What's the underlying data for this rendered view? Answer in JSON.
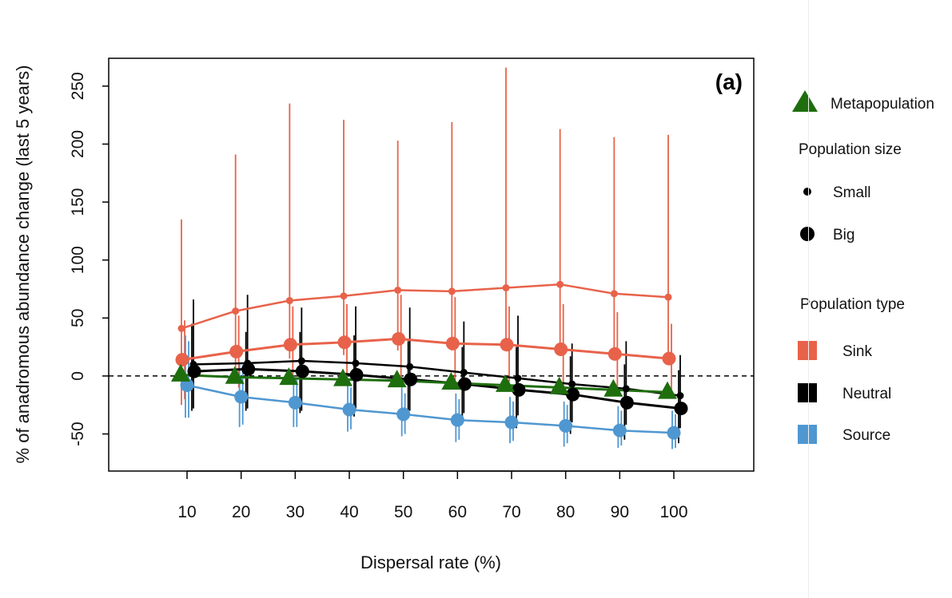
{
  "chart_data": {
    "type": "line",
    "panel_label": "(a)",
    "xlabel": "Dispersal rate (%)",
    "ylabel": "% of anadromous abundance change (last 5 years)",
    "x": [
      10,
      20,
      30,
      40,
      50,
      60,
      70,
      80,
      90,
      100
    ],
    "x_ticks": [
      "10",
      "20",
      "30",
      "40",
      "50",
      "60",
      "70",
      "80",
      "90",
      "100"
    ],
    "y_ticks": [
      "-50",
      "0",
      "50",
      "100",
      "150",
      "200",
      "250"
    ],
    "ylim": [
      -82,
      274
    ],
    "reference_line_y": 0,
    "grid": false,
    "colors": {
      "sink": "#e8624a",
      "neutral": "#000000",
      "source": "#4f97d1",
      "metapopulation": "#1e6e0e"
    },
    "series": [
      {
        "name": "Sink",
        "size": "Small",
        "color": "#e8624a",
        "values": [
          41,
          56,
          65,
          69,
          74,
          73,
          76,
          79,
          71,
          68
        ],
        "lower": [
          -25,
          5,
          15,
          18,
          22,
          22,
          24,
          28,
          20,
          18
        ],
        "upper": [
          135,
          191,
          235,
          221,
          203,
          219,
          266,
          213,
          206,
          208
        ]
      },
      {
        "name": "Sink",
        "size": "Big",
        "color": "#e8624a",
        "values": [
          14,
          21,
          27,
          29,
          32,
          28,
          27,
          23,
          19,
          15
        ],
        "lower": [
          -20,
          -10,
          -5,
          -5,
          -2,
          -5,
          -5,
          -8,
          -12,
          -15
        ],
        "upper": [
          48,
          52,
          60,
          62,
          70,
          68,
          60,
          62,
          55,
          45
        ]
      },
      {
        "name": "Neutral",
        "size": "Small",
        "color": "#000000",
        "values": [
          10,
          11,
          13,
          11,
          8,
          3,
          -2,
          -7,
          -11,
          -17
        ],
        "lower": [
          -28,
          -28,
          -30,
          -28,
          -30,
          -32,
          -34,
          -40,
          -42,
          -45
        ],
        "upper": [
          66,
          70,
          59,
          60,
          59,
          47,
          52,
          28,
          30,
          18
        ]
      },
      {
        "name": "Neutral",
        "size": "Big",
        "color": "#000000",
        "values": [
          4,
          6,
          4,
          1,
          -3,
          -7,
          -12,
          -16,
          -23,
          -28
        ],
        "lower": [
          -30,
          -30,
          -32,
          -35,
          -36,
          -40,
          -45,
          -50,
          -55,
          -58
        ],
        "upper": [
          45,
          38,
          38,
          35,
          30,
          25,
          25,
          17,
          10,
          5
        ]
      },
      {
        "name": "Source",
        "size": "Small",
        "color": "#4f97d1",
        "values": [
          -8,
          -18,
          -23,
          -29,
          -33,
          -38,
          -40,
          -43,
          -47,
          -49
        ],
        "lower": [
          -36,
          -44,
          -44,
          -48,
          -52,
          -57,
          -58,
          -61,
          -62,
          -63
        ],
        "upper": [
          35,
          10,
          0,
          -5,
          -10,
          -15,
          -18,
          -22,
          -26,
          -30
        ]
      },
      {
        "name": "Source",
        "size": "Big",
        "color": "#4f97d1",
        "values": [
          -8,
          -18,
          -23,
          -29,
          -33,
          -38,
          -40,
          -43,
          -47,
          -49
        ],
        "lower": [
          -36,
          -42,
          -44,
          -46,
          -50,
          -55,
          -56,
          -58,
          -60,
          -62
        ],
        "upper": [
          30,
          8,
          -2,
          -10,
          -15,
          -20,
          -22,
          -25,
          -30,
          -33
        ]
      },
      {
        "name": "Metapopulation",
        "color": "#1e6e0e",
        "values": [
          1,
          -1,
          -2,
          -3,
          -4,
          -6,
          -8,
          -10,
          -12,
          -14
        ]
      }
    ],
    "legend": {
      "metapopulation": "Metapopulation",
      "size_title": "Population size",
      "size_small": "Small",
      "size_big": "Big",
      "type_title": "Population type",
      "type_sink": "Sink",
      "type_neutral": "Neutral",
      "type_source": "Source",
      "placement": "right"
    }
  }
}
